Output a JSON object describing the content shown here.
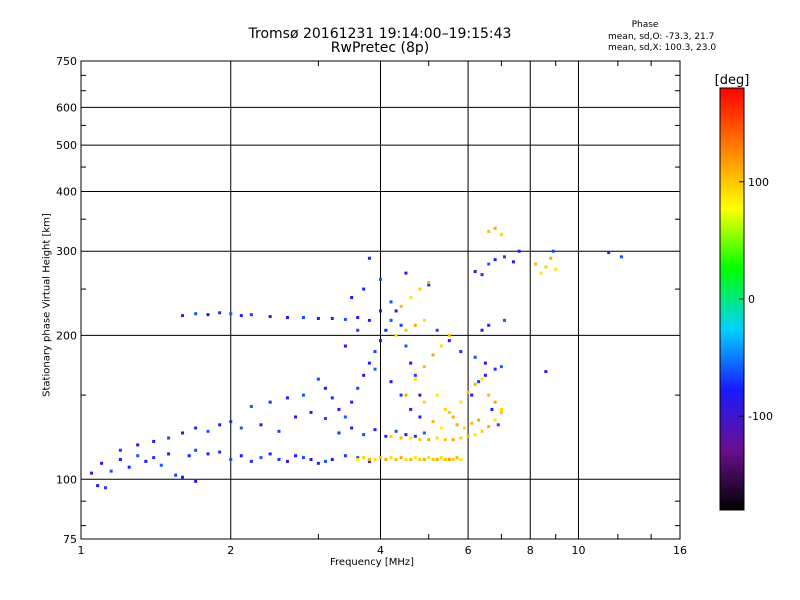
{
  "chart_data": {
    "type": "scatter",
    "title": "Tromsø 20161231 19:14:00–19:15:43",
    "subtitle": "RwPretec (8p)",
    "xlabel": "Frequency [MHz]",
    "ylabel": "Stationary phase Virtual Height [km]",
    "x_scale": "log",
    "y_scale": "log",
    "xlim": [
      1,
      16
    ],
    "ylim": [
      75,
      750
    ],
    "grid": true,
    "x_ticks": [
      1,
      2,
      4,
      6,
      8,
      10,
      16
    ],
    "y_ticks": [
      75,
      100,
      200,
      300,
      400,
      500,
      600,
      750
    ],
    "colorbar": {
      "label": "[deg]",
      "range": [
        -180,
        180
      ],
      "ticks": [
        100,
        0,
        -100
      ],
      "colors": [
        "#000000",
        "#6a0f8e",
        "#1a1aff",
        "#00d2ff",
        "#00ff00",
        "#ffff00",
        "#ff8000",
        "#ff0000"
      ]
    },
    "annotation": {
      "heading": "Phase",
      "line_o": "mean, sd,O: -73.3, 21.7",
      "line_x": "mean, sd,X: 100.3, 23.0"
    },
    "series": [
      {
        "mode": "O",
        "phase_deg": -73,
        "points": [
          [
            1.05,
            103
          ],
          [
            1.1,
            108
          ],
          [
            1.15,
            104
          ],
          [
            1.2,
            110
          ],
          [
            1.25,
            106
          ],
          [
            1.3,
            112
          ],
          [
            1.35,
            109
          ],
          [
            1.4,
            111
          ],
          [
            1.45,
            107
          ],
          [
            1.5,
            113
          ],
          [
            1.55,
            102
          ],
          [
            1.6,
            101
          ],
          [
            1.65,
            112
          ],
          [
            1.7,
            115
          ],
          [
            1.8,
            113
          ],
          [
            1.9,
            114
          ],
          [
            2.0,
            110
          ],
          [
            2.1,
            112
          ],
          [
            2.2,
            109
          ],
          [
            2.3,
            111
          ],
          [
            2.4,
            113
          ],
          [
            2.5,
            110
          ],
          [
            2.6,
            109
          ],
          [
            2.7,
            112
          ],
          [
            2.8,
            111
          ],
          [
            2.9,
            110
          ],
          [
            3.0,
            108
          ],
          [
            3.1,
            109
          ],
          [
            3.2,
            110
          ],
          [
            3.4,
            112
          ],
          [
            3.6,
            111
          ],
          [
            3.8,
            109
          ],
          [
            1.2,
            115
          ],
          [
            1.3,
            118
          ],
          [
            1.4,
            120
          ],
          [
            1.5,
            122
          ],
          [
            1.6,
            125
          ],
          [
            1.7,
            128
          ],
          [
            1.8,
            126
          ],
          [
            1.9,
            130
          ],
          [
            2.0,
            132
          ],
          [
            2.1,
            128
          ],
          [
            2.3,
            130
          ],
          [
            2.5,
            126
          ],
          [
            2.7,
            135
          ],
          [
            2.9,
            138
          ],
          [
            3.1,
            134
          ],
          [
            3.3,
            140
          ],
          [
            1.6,
            220
          ],
          [
            1.7,
            222
          ],
          [
            1.8,
            221
          ],
          [
            1.9,
            223
          ],
          [
            2.0,
            222
          ],
          [
            2.1,
            220
          ],
          [
            2.2,
            221
          ],
          [
            2.4,
            219
          ],
          [
            2.6,
            218
          ],
          [
            2.8,
            218
          ],
          [
            3.0,
            217
          ],
          [
            3.2,
            217
          ],
          [
            3.4,
            216
          ],
          [
            3.6,
            218
          ],
          [
            3.3,
            125
          ],
          [
            3.4,
            135
          ],
          [
            3.5,
            145
          ],
          [
            3.6,
            155
          ],
          [
            3.7,
            165
          ],
          [
            3.8,
            175
          ],
          [
            3.9,
            185
          ],
          [
            4.0,
            195
          ],
          [
            4.1,
            205
          ],
          [
            4.2,
            215
          ],
          [
            4.3,
            225
          ],
          [
            4.4,
            210
          ],
          [
            4.5,
            190
          ],
          [
            4.6,
            175
          ],
          [
            4.7,
            165
          ],
          [
            4.8,
            150
          ],
          [
            3.5,
            128
          ],
          [
            3.7,
            124
          ],
          [
            3.9,
            127
          ],
          [
            4.1,
            123
          ],
          [
            4.3,
            126
          ],
          [
            4.5,
            124
          ],
          [
            4.7,
            123
          ],
          [
            4.9,
            125
          ],
          [
            3.4,
            190
          ],
          [
            3.6,
            205
          ],
          [
            3.8,
            215
          ],
          [
            4.0,
            225
          ],
          [
            4.2,
            235
          ],
          [
            3.5,
            240
          ],
          [
            3.7,
            250
          ],
          [
            4.0,
            262
          ],
          [
            4.5,
            270
          ],
          [
            5.0,
            255
          ],
          [
            3.9,
            170
          ],
          [
            4.2,
            160
          ],
          [
            4.4,
            150
          ],
          [
            4.6,
            140
          ],
          [
            4.8,
            135
          ],
          [
            5.2,
            205
          ],
          [
            5.5,
            195
          ],
          [
            5.8,
            185
          ],
          [
            6.2,
            180
          ],
          [
            6.5,
            175
          ],
          [
            6.8,
            170
          ],
          [
            7.0,
            172
          ],
          [
            6.1,
            150
          ],
          [
            6.3,
            160
          ],
          [
            6.5,
            165
          ],
          [
            6.7,
            140
          ],
          [
            6.9,
            130
          ],
          [
            6.4,
            205
          ],
          [
            6.6,
            210
          ],
          [
            7.1,
            215
          ],
          [
            6.2,
            272
          ],
          [
            6.4,
            268
          ],
          [
            6.6,
            282
          ],
          [
            6.8,
            288
          ],
          [
            7.1,
            292
          ],
          [
            7.4,
            285
          ],
          [
            7.6,
            300
          ],
          [
            3.0,
            162
          ],
          [
            3.1,
            155
          ],
          [
            3.2,
            148
          ],
          [
            2.8,
            150
          ],
          [
            2.6,
            148
          ],
          [
            2.4,
            145
          ],
          [
            2.2,
            142
          ],
          [
            1.08,
            97
          ],
          [
            1.12,
            96
          ],
          [
            1.7,
            99
          ],
          [
            3.8,
            290
          ],
          [
            8.9,
            300
          ],
          [
            8.6,
            168
          ],
          [
            11.5,
            298
          ],
          [
            12.2,
            292
          ]
        ]
      },
      {
        "mode": "X",
        "phase_deg": 100,
        "points": [
          [
            3.6,
            110
          ],
          [
            3.7,
            111
          ],
          [
            3.8,
            110
          ],
          [
            3.9,
            110
          ],
          [
            4.0,
            111
          ],
          [
            4.1,
            110
          ],
          [
            4.2,
            111
          ],
          [
            4.3,
            110
          ],
          [
            4.4,
            111
          ],
          [
            4.5,
            110
          ],
          [
            4.6,
            110
          ],
          [
            4.7,
            111
          ],
          [
            4.8,
            110
          ],
          [
            4.9,
            110
          ],
          [
            5.0,
            111
          ],
          [
            5.1,
            110
          ],
          [
            5.2,
            110
          ],
          [
            5.3,
            111
          ],
          [
            5.4,
            110
          ],
          [
            5.5,
            110
          ],
          [
            5.6,
            110
          ],
          [
            5.7,
            111
          ],
          [
            5.8,
            110
          ],
          [
            4.2,
            123
          ],
          [
            4.4,
            122
          ],
          [
            4.6,
            122
          ],
          [
            4.8,
            121
          ],
          [
            5.0,
            121
          ],
          [
            5.2,
            122
          ],
          [
            5.4,
            121
          ],
          [
            5.6,
            121
          ],
          [
            5.8,
            122
          ],
          [
            6.0,
            123
          ],
          [
            6.2,
            124
          ],
          [
            6.4,
            126
          ],
          [
            6.6,
            129
          ],
          [
            6.8,
            133
          ],
          [
            7.0,
            138
          ],
          [
            4.5,
            150
          ],
          [
            4.7,
            162
          ],
          [
            4.9,
            172
          ],
          [
            5.1,
            182
          ],
          [
            5.3,
            190
          ],
          [
            5.5,
            200
          ],
          [
            5.2,
            150
          ],
          [
            5.4,
            140
          ],
          [
            5.6,
            135
          ],
          [
            5.8,
            145
          ],
          [
            6.0,
            152
          ],
          [
            6.2,
            158
          ],
          [
            6.4,
            162
          ],
          [
            6.6,
            150
          ],
          [
            6.8,
            145
          ],
          [
            7.0,
            140
          ],
          [
            4.4,
            230
          ],
          [
            4.6,
            240
          ],
          [
            4.8,
            250
          ],
          [
            5.0,
            258
          ],
          [
            4.3,
            200
          ],
          [
            4.5,
            205
          ],
          [
            4.7,
            210
          ],
          [
            4.9,
            215
          ],
          [
            6.6,
            330
          ],
          [
            6.8,
            335
          ],
          [
            7.0,
            325
          ],
          [
            8.2,
            282
          ],
          [
            8.4,
            270
          ],
          [
            8.6,
            278
          ],
          [
            8.8,
            290
          ],
          [
            9.0,
            275
          ],
          [
            5.5,
            138
          ],
          [
            5.7,
            130
          ],
          [
            5.9,
            128
          ],
          [
            6.1,
            131
          ],
          [
            6.3,
            133
          ],
          [
            4.9,
            145
          ],
          [
            5.1,
            132
          ],
          [
            5.3,
            128
          ]
        ]
      }
    ]
  }
}
